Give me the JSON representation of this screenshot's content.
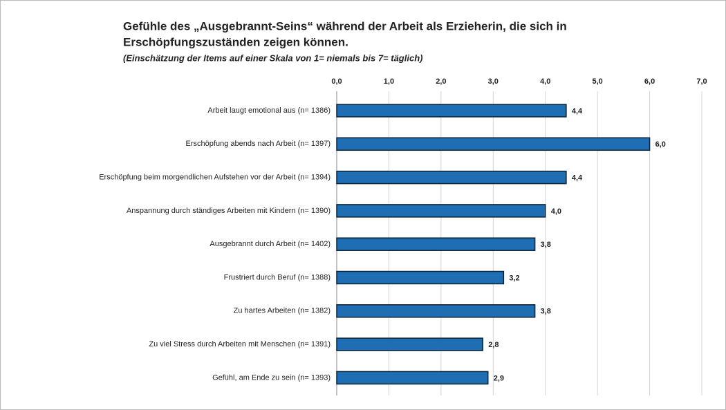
{
  "chart_data": {
    "type": "bar",
    "orientation": "horizontal",
    "title": [
      "Gefühle des „Ausgebrannt-Seins“ während der Arbeit als Erzieherin, die sich  in",
      "Erschöpfungszuständen zeigen können."
    ],
    "subtitle": "(Einschätzung der Items auf einer Skala von 1= niemals  bis 7= täglich)",
    "categories": [
      "Arbeit laugt emotional aus (n= 1386)",
      "Erschöpfung abends nach Arbeit (n= 1397)",
      "Erschöpfung beim morgendlichen Aufstehen vor der Arbeit (n= 1394)",
      "Anspannung durch ständiges Arbeiten mit Kindern (n= 1390)",
      "Ausgebrannt durch Arbeit (n= 1402)",
      "Frustriert durch Beruf (n= 1388)",
      "Zu hartes Arbeiten (n= 1382)",
      "Zu viel Stress durch Arbeiten mit Menschen (n= 1391)",
      "Gefühl, am Ende zu sein (n= 1393)"
    ],
    "values": [
      4.4,
      6.0,
      4.4,
      4.0,
      3.8,
      3.2,
      3.8,
      2.8,
      2.9
    ],
    "value_labels": [
      "4,4",
      "6,0",
      "4,4",
      "4,0",
      "3,8",
      "3,2",
      "3,8",
      "2,8",
      "2,9"
    ],
    "color": "#1f6db3",
    "xlim": [
      0,
      7
    ],
    "xticks": [
      {
        "value": 0,
        "label": "0,0"
      },
      {
        "value": 1,
        "label": "1,0"
      },
      {
        "value": 2,
        "label": "2,0"
      },
      {
        "value": 3,
        "label": "3,0"
      },
      {
        "value": 4,
        "label": "4,0"
      },
      {
        "value": 5,
        "label": "5,0"
      },
      {
        "value": 6,
        "label": "6,0"
      },
      {
        "value": 7,
        "label": "7,0"
      }
    ],
    "grid": true
  }
}
